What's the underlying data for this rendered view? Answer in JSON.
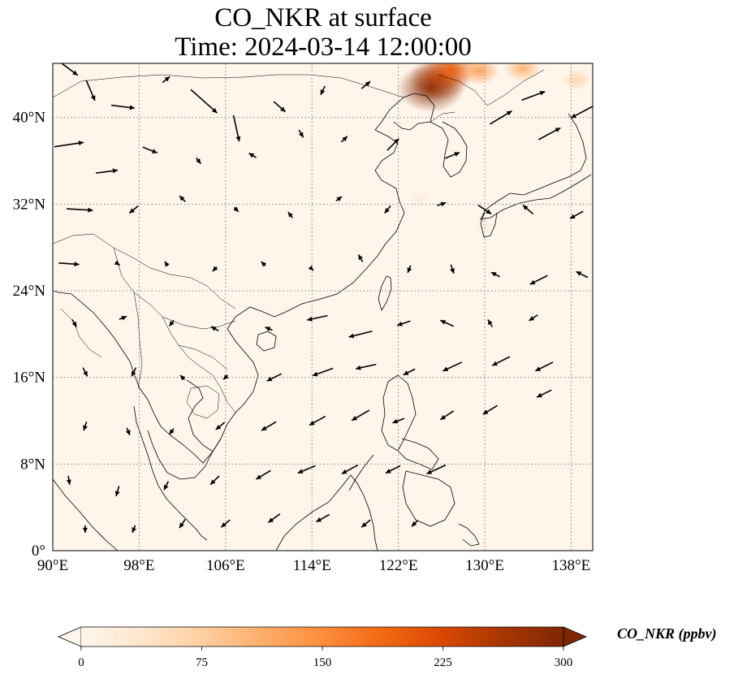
{
  "title": {
    "line1": "CO_NKR at surface",
    "line2": "Time: 2024-03-14 12:00:00"
  },
  "map": {
    "projection": "PlateCarree",
    "extent": {
      "lon": [
        90,
        140
      ],
      "lat": [
        0,
        45
      ]
    },
    "lon_ticks": [
      {
        "value": 90,
        "label": "90°E"
      },
      {
        "value": 98,
        "label": "98°E"
      },
      {
        "value": 106,
        "label": "106°E"
      },
      {
        "value": 114,
        "label": "114°E"
      },
      {
        "value": 122,
        "label": "122°E"
      },
      {
        "value": 130,
        "label": "130°E"
      },
      {
        "value": 138,
        "label": "138°E"
      }
    ],
    "lat_ticks": [
      {
        "value": 0,
        "label": "0°"
      },
      {
        "value": 8,
        "label": "8°N"
      },
      {
        "value": 16,
        "label": "16°N"
      },
      {
        "value": 24,
        "label": "24°N"
      },
      {
        "value": 32,
        "label": "32°N"
      },
      {
        "value": 40,
        "label": "40°N"
      }
    ],
    "gridlines": "dotted gray",
    "field": "CO_NKR concentration",
    "background_color": "#fff5eb",
    "hotspots": [
      {
        "lon": 125.0,
        "lat": 42.7,
        "value": 300
      },
      {
        "lon": 125.8,
        "lat": 43.6,
        "value": 260
      },
      {
        "lon": 126.9,
        "lat": 44.4,
        "value": 200
      },
      {
        "lon": 129.5,
        "lat": 44.3,
        "value": 130
      },
      {
        "lon": 133.5,
        "lat": 44.5,
        "value": 110
      },
      {
        "lon": 138.5,
        "lat": 43.5,
        "value": 70
      },
      {
        "lon": 124.0,
        "lat": 32.5,
        "value": 25
      },
      {
        "lon": 130.0,
        "lat": 30.0,
        "value": 20
      }
    ],
    "wind_vectors": [
      {
        "lon": 91.5,
        "lat": 44.5,
        "u": 1.2,
        "v": -0.9
      },
      {
        "lon": 93.5,
        "lat": 42.5,
        "u": 0.6,
        "v": -1.4
      },
      {
        "lon": 96.5,
        "lat": 41.0,
        "u": 1.6,
        "v": -0.2
      },
      {
        "lon": 100.5,
        "lat": 43.5,
        "u": 0.5,
        "v": 0.4
      },
      {
        "lon": 104.0,
        "lat": 41.5,
        "u": 1.8,
        "v": -1.6
      },
      {
        "lon": 107.0,
        "lat": 39.0,
        "u": 0.4,
        "v": -1.8
      },
      {
        "lon": 111.0,
        "lat": 41.0,
        "u": 0.8,
        "v": -0.7
      },
      {
        "lon": 115.0,
        "lat": 42.5,
        "u": -0.3,
        "v": -0.6
      },
      {
        "lon": 119.0,
        "lat": 43.0,
        "u": 0.6,
        "v": 0.5
      },
      {
        "lon": 91.5,
        "lat": 37.5,
        "u": 2.0,
        "v": 0.3
      },
      {
        "lon": 95.0,
        "lat": 35.0,
        "u": 1.5,
        "v": 0.2
      },
      {
        "lon": 99.0,
        "lat": 37.0,
        "u": 1.0,
        "v": -0.4
      },
      {
        "lon": 103.5,
        "lat": 36.0,
        "u": 0.3,
        "v": -0.4
      },
      {
        "lon": 108.5,
        "lat": 36.5,
        "u": -0.5,
        "v": 0.3
      },
      {
        "lon": 113.0,
        "lat": 38.5,
        "u": 0.3,
        "v": -0.5
      },
      {
        "lon": 117.0,
        "lat": 38.0,
        "u": 0.4,
        "v": 0.4
      },
      {
        "lon": 121.5,
        "lat": 37.5,
        "u": 0.8,
        "v": 0.8
      },
      {
        "lon": 127.0,
        "lat": 36.5,
        "u": 1.0,
        "v": 0.4
      },
      {
        "lon": 131.5,
        "lat": 40.0,
        "u": 1.5,
        "v": 0.9
      },
      {
        "lon": 136.0,
        "lat": 38.5,
        "u": 1.5,
        "v": 0.8
      },
      {
        "lon": 139.0,
        "lat": 40.5,
        "u": -1.5,
        "v": -0.8
      },
      {
        "lon": 134.5,
        "lat": 42.0,
        "u": 1.6,
        "v": 0.6
      },
      {
        "lon": 92.5,
        "lat": 31.5,
        "u": 1.8,
        "v": -0.1
      },
      {
        "lon": 97.5,
        "lat": 31.5,
        "u": -0.6,
        "v": -0.5
      },
      {
        "lon": 102.0,
        "lat": 32.5,
        "u": -0.4,
        "v": 0.4
      },
      {
        "lon": 107.0,
        "lat": 31.5,
        "u": 0.3,
        "v": -0.3
      },
      {
        "lon": 112.0,
        "lat": 31.0,
        "u": -0.3,
        "v": 0.4
      },
      {
        "lon": 116.5,
        "lat": 32.5,
        "u": 0.4,
        "v": 0.3
      },
      {
        "lon": 121.0,
        "lat": 31.5,
        "u": -0.4,
        "v": -0.5
      },
      {
        "lon": 126.0,
        "lat": 32.0,
        "u": 0.6,
        "v": 0.2
      },
      {
        "lon": 130.0,
        "lat": 31.5,
        "u": 0.9,
        "v": -0.6
      },
      {
        "lon": 134.0,
        "lat": 31.5,
        "u": -0.7,
        "v": 0.6
      },
      {
        "lon": 138.5,
        "lat": 31.0,
        "u": -0.9,
        "v": -0.5
      },
      {
        "lon": 91.5,
        "lat": 26.5,
        "u": 1.4,
        "v": -0.1
      },
      {
        "lon": 96.0,
        "lat": 26.5,
        "u": 0.3,
        "v": -0.2
      },
      {
        "lon": 100.5,
        "lat": 26.5,
        "u": -0.2,
        "v": 0.3
      },
      {
        "lon": 105.0,
        "lat": 26.0,
        "u": -0.3,
        "v": -0.3
      },
      {
        "lon": 109.5,
        "lat": 26.5,
        "u": -0.3,
        "v": 0.3
      },
      {
        "lon": 114.0,
        "lat": 26.0,
        "u": 0.2,
        "v": -0.2
      },
      {
        "lon": 118.5,
        "lat": 27.0,
        "u": -0.3,
        "v": 0.5
      },
      {
        "lon": 123.0,
        "lat": 26.0,
        "u": -0.2,
        "v": -0.5
      },
      {
        "lon": 127.0,
        "lat": 26.0,
        "u": 0.2,
        "v": -0.6
      },
      {
        "lon": 131.0,
        "lat": 25.5,
        "u": -0.6,
        "v": 0.3
      },
      {
        "lon": 135.0,
        "lat": 25.0,
        "u": -1.2,
        "v": -0.6
      },
      {
        "lon": 139.0,
        "lat": 25.5,
        "u": -0.8,
        "v": 0.4
      },
      {
        "lon": 92.0,
        "lat": 21.0,
        "u": 0.3,
        "v": -0.5
      },
      {
        "lon": 96.5,
        "lat": 21.5,
        "u": 0.5,
        "v": 0.2
      },
      {
        "lon": 101.0,
        "lat": 21.0,
        "u": -0.3,
        "v": -0.4
      },
      {
        "lon": 105.0,
        "lat": 20.5,
        "u": -0.5,
        "v": 0.3
      },
      {
        "lon": 110.0,
        "lat": 20.5,
        "u": -0.5,
        "v": 0.2
      },
      {
        "lon": 114.5,
        "lat": 21.5,
        "u": -1.4,
        "v": -0.3
      },
      {
        "lon": 118.5,
        "lat": 20.0,
        "u": -1.6,
        "v": -0.4
      },
      {
        "lon": 122.5,
        "lat": 21.0,
        "u": -0.9,
        "v": -0.3
      },
      {
        "lon": 126.5,
        "lat": 21.0,
        "u": -0.9,
        "v": 0.4
      },
      {
        "lon": 130.5,
        "lat": 21.0,
        "u": -0.3,
        "v": 0.5
      },
      {
        "lon": 134.5,
        "lat": 21.5,
        "u": -0.6,
        "v": -0.4
      },
      {
        "lon": 93.0,
        "lat": 16.5,
        "u": 0.3,
        "v": -0.6
      },
      {
        "lon": 97.5,
        "lat": 16.5,
        "u": -0.3,
        "v": -0.6
      },
      {
        "lon": 102.0,
        "lat": 16.0,
        "u": -0.3,
        "v": 0.3
      },
      {
        "lon": 106.0,
        "lat": 16.0,
        "u": -0.3,
        "v": -0.3
      },
      {
        "lon": 110.5,
        "lat": 16.0,
        "u": -1.0,
        "v": -0.5
      },
      {
        "lon": 115.0,
        "lat": 16.5,
        "u": -1.4,
        "v": -0.5
      },
      {
        "lon": 119.0,
        "lat": 17.0,
        "u": -1.4,
        "v": -0.3
      },
      {
        "lon": 123.0,
        "lat": 16.5,
        "u": -0.8,
        "v": -0.4
      },
      {
        "lon": 127.0,
        "lat": 17.0,
        "u": -1.3,
        "v": -0.6
      },
      {
        "lon": 131.5,
        "lat": 17.5,
        "u": -1.2,
        "v": -0.6
      },
      {
        "lon": 135.5,
        "lat": 17.0,
        "u": -1.2,
        "v": -0.6
      },
      {
        "lon": 93.0,
        "lat": 11.5,
        "u": -0.2,
        "v": -0.6
      },
      {
        "lon": 97.0,
        "lat": 11.0,
        "u": 0.2,
        "v": -0.5
      },
      {
        "lon": 101.0,
        "lat": 11.0,
        "u": -0.3,
        "v": -0.4
      },
      {
        "lon": 105.5,
        "lat": 11.5,
        "u": -0.6,
        "v": -0.5
      },
      {
        "lon": 110.0,
        "lat": 11.5,
        "u": -1.0,
        "v": -0.6
      },
      {
        "lon": 114.5,
        "lat": 12.0,
        "u": -1.1,
        "v": -0.6
      },
      {
        "lon": 118.5,
        "lat": 12.5,
        "u": -1.2,
        "v": -0.7
      },
      {
        "lon": 122.0,
        "lat": 12.0,
        "u": -0.8,
        "v": -0.3
      },
      {
        "lon": 126.5,
        "lat": 12.5,
        "u": -0.9,
        "v": -0.6
      },
      {
        "lon": 130.5,
        "lat": 13.0,
        "u": -1.0,
        "v": -0.6
      },
      {
        "lon": 135.5,
        "lat": 14.5,
        "u": -1.0,
        "v": -0.5
      },
      {
        "lon": 91.5,
        "lat": 6.5,
        "u": 0.1,
        "v": -0.6
      },
      {
        "lon": 96.0,
        "lat": 5.5,
        "u": -0.2,
        "v": -0.7
      },
      {
        "lon": 100.5,
        "lat": 6.0,
        "u": -0.3,
        "v": -0.6
      },
      {
        "lon": 105.0,
        "lat": 6.5,
        "u": -0.6,
        "v": -0.6
      },
      {
        "lon": 109.5,
        "lat": 7.0,
        "u": -1.0,
        "v": -0.6
      },
      {
        "lon": 113.5,
        "lat": 7.5,
        "u": -1.2,
        "v": -0.5
      },
      {
        "lon": 117.5,
        "lat": 7.5,
        "u": -1.1,
        "v": -0.6
      },
      {
        "lon": 121.5,
        "lat": 7.5,
        "u": -1.0,
        "v": -0.5
      },
      {
        "lon": 125.5,
        "lat": 7.5,
        "u": -1.3,
        "v": -0.6
      },
      {
        "lon": 93.0,
        "lat": 2.0,
        "u": 0.0,
        "v": -0.5
      },
      {
        "lon": 97.5,
        "lat": 2.0,
        "u": -0.2,
        "v": -0.5
      },
      {
        "lon": 102.0,
        "lat": 2.5,
        "u": -0.4,
        "v": -0.6
      },
      {
        "lon": 106.0,
        "lat": 2.5,
        "u": -0.6,
        "v": -0.5
      },
      {
        "lon": 110.5,
        "lat": 3.0,
        "u": -0.8,
        "v": -0.6
      },
      {
        "lon": 115.0,
        "lat": 3.0,
        "u": -0.9,
        "v": -0.5
      },
      {
        "lon": 119.0,
        "lat": 2.5,
        "u": -0.6,
        "v": -0.5
      },
      {
        "lon": 123.5,
        "lat": 2.5,
        "u": -0.4,
        "v": -0.4
      }
    ]
  },
  "colorbar": {
    "title": "CO_NKR (ppbv)",
    "min": 0,
    "max": 300,
    "extend": "both",
    "ticks": [
      {
        "value": 0,
        "label": "0"
      },
      {
        "value": 75,
        "label": "75"
      },
      {
        "value": 150,
        "label": "150"
      },
      {
        "value": 225,
        "label": "225"
      },
      {
        "value": 300,
        "label": "300"
      }
    ],
    "colormap": [
      "#fff5eb",
      "#fee6ce",
      "#fdd0a2",
      "#fdae6b",
      "#fd8d3c",
      "#f16913",
      "#d94801",
      "#a63603",
      "#7f2704"
    ]
  }
}
